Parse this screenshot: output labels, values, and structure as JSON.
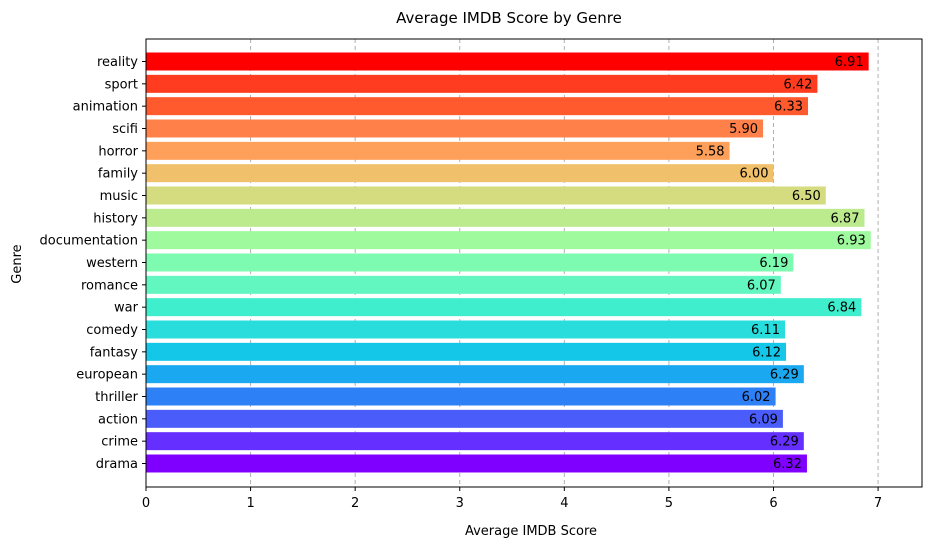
{
  "chart_data": {
    "type": "bar",
    "orientation": "horizontal",
    "title": "Average IMDB Score by Genre",
    "xlabel": "Average IMDB Score",
    "ylabel": "Genre",
    "xlim": [
      0,
      7.42
    ],
    "xticks": [
      0,
      1,
      2,
      3,
      4,
      5,
      6,
      7
    ],
    "grid": "x-dashed",
    "categories": [
      "reality",
      "sport",
      "animation",
      "scifi",
      "horror",
      "family",
      "music",
      "history",
      "documentation",
      "western",
      "romance",
      "war",
      "comedy",
      "fantasy",
      "european",
      "thriller",
      "action",
      "crime",
      "drama"
    ],
    "values": [
      6.91,
      6.42,
      6.33,
      5.9,
      5.58,
      6.0,
      6.5,
      6.87,
      6.93,
      6.19,
      6.07,
      6.84,
      6.11,
      6.12,
      6.29,
      6.02,
      6.09,
      6.29,
      6.32
    ],
    "labels": [
      "6.91",
      "6.42",
      "6.33",
      "5.90",
      "5.58",
      "6.00",
      "6.50",
      "6.87",
      "6.93",
      "6.19",
      "6.07",
      "6.84",
      "6.11",
      "6.12",
      "6.29",
      "6.02",
      "6.09",
      "6.29",
      "6.32"
    ],
    "colors": [
      "#ff0000",
      "#ff3c1f",
      "#ff5a2e",
      "#ff8049",
      "#ffa05a",
      "#f0c06a",
      "#d4dc7f",
      "#bceb8d",
      "#9ffa9d",
      "#7dfbb0",
      "#62f6c0",
      "#3eeecd",
      "#2adddd",
      "#14c6e8",
      "#1aa8f0",
      "#2e80f6",
      "#4a5cfa",
      "#6530ff",
      "#8000ff"
    ]
  }
}
